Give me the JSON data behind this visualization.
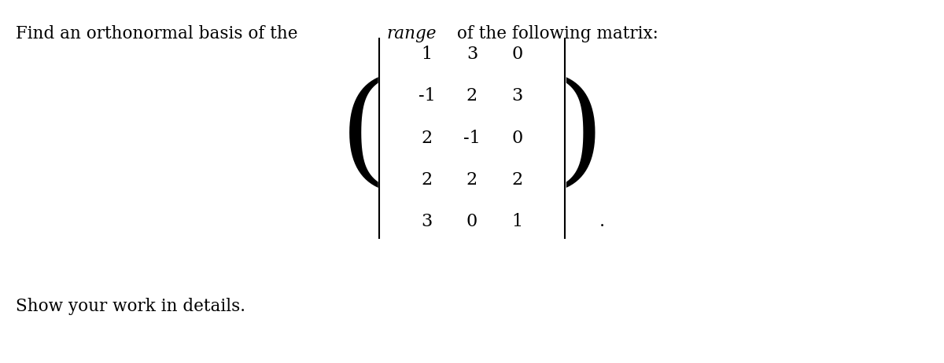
{
  "title_text": "Find an orthonormal basis of the ",
  "title_italic": "range",
  "title_end": " of the following matrix:",
  "matrix": [
    [
      "1",
      "3",
      "0"
    ],
    [
      "-1",
      "2",
      "3"
    ],
    [
      "2",
      "-1",
      "0"
    ],
    [
      "2",
      "2",
      "2"
    ],
    [
      "3",
      "0",
      "1"
    ]
  ],
  "subtitle": "Show your work in details.",
  "bg_color": "#ffffff",
  "text_color": "#000000",
  "title_fontsize": 15.5,
  "matrix_fontsize": 16,
  "subtitle_fontsize": 15.5
}
